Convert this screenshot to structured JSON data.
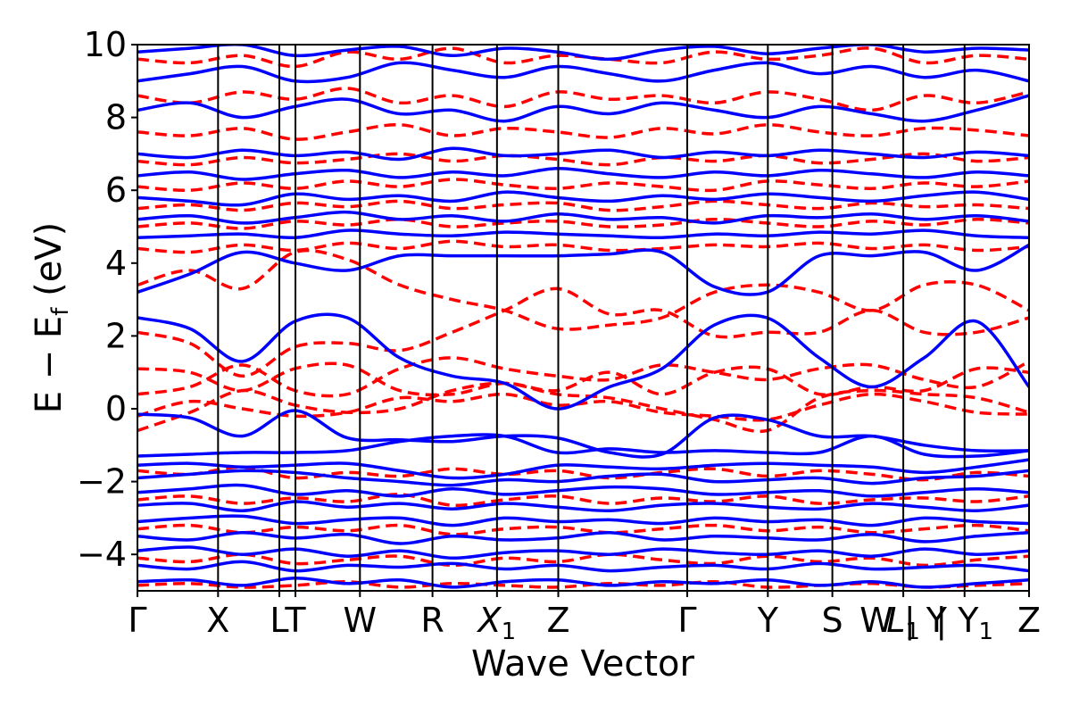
{
  "chart_data": {
    "type": "line",
    "xlabel": "Wave Vector",
    "ylabel": {
      "main": "E − E",
      "sub": "f",
      "unit": " (eV)"
    },
    "ylim": [
      -5,
      10
    ],
    "yticks": [
      {
        "value": 10,
        "label": "10"
      },
      {
        "value": 8,
        "label": "8"
      },
      {
        "value": 6,
        "label": "6"
      },
      {
        "value": 4,
        "label": "4"
      },
      {
        "value": 2,
        "label": "2"
      },
      {
        "value": 0,
        "label": "0"
      },
      {
        "value": -2,
        "label": "−2"
      },
      {
        "value": -4,
        "label": "−4"
      }
    ],
    "kpoints": [
      {
        "label": "Γ",
        "sub": "",
        "position": 0.0
      },
      {
        "label": "X",
        "sub": "",
        "position": 0.5
      },
      {
        "label": "L",
        "sub": "",
        "position": 0.88
      },
      {
        "label": "T",
        "sub": "",
        "position": 0.98
      },
      {
        "label": "W",
        "sub": "",
        "position": 1.38
      },
      {
        "label": "R",
        "sub": "",
        "position": 1.83
      },
      {
        "label": "X",
        "sub": "1",
        "position": 2.23
      },
      {
        "label": "Z",
        "sub": "",
        "position": 2.61
      },
      {
        "label": "Γ",
        "sub": "",
        "position": 3.41
      },
      {
        "label": "Y",
        "sub": "",
        "position": 3.91
      },
      {
        "label": "S",
        "sub": "",
        "position": 4.31
      },
      {
        "label": "W | Y",
        "sub": "",
        "position": 4.75
      },
      {
        "label": "L",
        "sub": "1",
        "position": 4.75
      },
      {
        "label": "| Y",
        "sub": "1",
        "position": 5.13
      },
      {
        "label": "Z",
        "sub": "",
        "position": 5.53
      }
    ],
    "series_styles": [
      {
        "id": "solid",
        "color": "#0000ff",
        "dash": "solid"
      },
      {
        "id": "dashed",
        "color": "#ff0000",
        "dash": "dashed"
      }
    ],
    "bands": {
      "solid": [
        [
          -0.15,
          -0.25,
          -0.75,
          -0.05,
          -0.8,
          -0.85,
          -0.9,
          -0.75,
          -0.8,
          -1.2,
          -1.25,
          -0.25,
          -0.3,
          -0.75,
          -0.75,
          -1.0,
          -1.15,
          -1.15
        ],
        [
          2.5,
          2.2,
          1.3,
          2.4,
          2.5,
          1.4,
          0.9,
          0.7,
          0.0,
          0.6,
          1.1,
          2.3,
          2.5,
          1.4,
          0.6,
          1.4,
          2.4,
          0.6
        ],
        [
          3.2,
          3.7,
          4.3,
          4.0,
          3.8,
          4.2,
          4.2,
          4.2,
          4.2,
          4.25,
          4.3,
          3.35,
          3.2,
          4.2,
          4.2,
          4.3,
          3.8,
          4.5
        ],
        [
          -1.3,
          -1.25,
          -1.2,
          -1.2,
          -1.15,
          -0.9,
          -0.75,
          -0.75,
          -1.2,
          -1.1,
          -1.2,
          -1.15,
          -1.2,
          -1.2,
          -0.75,
          -1.25,
          -1.3,
          -1.15
        ],
        [
          -1.55,
          -1.5,
          -1.6,
          -1.55,
          -1.5,
          -1.7,
          -1.9,
          -1.8,
          -1.55,
          -1.6,
          -1.65,
          -1.55,
          -1.5,
          -1.55,
          -1.6,
          -1.75,
          -1.6,
          -1.4
        ],
        [
          -1.9,
          -1.8,
          -1.7,
          -1.75,
          -1.9,
          -2.0,
          -2.1,
          -1.95,
          -2.0,
          -1.85,
          -1.8,
          -2.0,
          -1.95,
          -1.9,
          -2.05,
          -1.9,
          -1.85,
          -1.7
        ],
        [
          -2.3,
          -2.2,
          -2.1,
          -2.35,
          -2.25,
          -2.4,
          -2.2,
          -2.35,
          -2.25,
          -2.15,
          -2.2,
          -2.35,
          -2.3,
          -2.25,
          -2.4,
          -2.3,
          -2.2,
          -2.3
        ],
        [
          -2.65,
          -2.6,
          -2.8,
          -2.55,
          -2.7,
          -2.6,
          -2.75,
          -2.6,
          -2.7,
          -2.8,
          -2.65,
          -2.6,
          -2.7,
          -2.75,
          -2.6,
          -2.7,
          -2.8,
          -2.65
        ],
        [
          -3.1,
          -3.0,
          -2.95,
          -3.15,
          -3.05,
          -3.0,
          -3.2,
          -3.0,
          -3.1,
          -3.05,
          -3.15,
          -3.0,
          -3.1,
          -3.05,
          -3.2,
          -3.0,
          -3.1,
          -3.15
        ],
        [
          -3.5,
          -3.6,
          -3.4,
          -3.55,
          -3.45,
          -3.7,
          -3.5,
          -3.6,
          -3.55,
          -3.4,
          -3.6,
          -3.5,
          -3.55,
          -3.6,
          -3.45,
          -3.65,
          -3.5,
          -3.4
        ],
        [
          -3.9,
          -3.8,
          -4.0,
          -3.85,
          -4.05,
          -3.9,
          -4.1,
          -3.95,
          -3.9,
          -4.0,
          -3.85,
          -3.95,
          -4.0,
          -3.9,
          -4.05,
          -3.85,
          -4.0,
          -3.9
        ],
        [
          -4.3,
          -4.4,
          -4.2,
          -4.45,
          -4.3,
          -4.35,
          -4.25,
          -4.4,
          -4.3,
          -4.45,
          -4.35,
          -4.3,
          -4.4,
          -4.25,
          -4.4,
          -4.35,
          -4.3,
          -4.45
        ],
        [
          -4.75,
          -4.7,
          -4.85,
          -4.65,
          -4.8,
          -4.7,
          -4.9,
          -4.75,
          -4.7,
          -4.85,
          -4.75,
          -4.8,
          -4.7,
          -4.85,
          -4.75,
          -4.9,
          -4.8,
          -4.7
        ],
        [
          4.7,
          4.75,
          4.8,
          4.7,
          4.9,
          4.8,
          4.75,
          4.85,
          4.8,
          4.75,
          4.7,
          4.8,
          4.75,
          4.85,
          4.8,
          4.9,
          4.75,
          4.7
        ],
        [
          5.2,
          5.3,
          5.1,
          5.25,
          5.4,
          5.2,
          5.3,
          5.15,
          5.35,
          5.2,
          5.25,
          5.1,
          5.3,
          5.25,
          5.35,
          5.2,
          5.3,
          5.15
        ],
        [
          5.8,
          5.7,
          5.6,
          5.9,
          5.75,
          5.85,
          5.7,
          5.95,
          5.8,
          5.7,
          5.85,
          5.75,
          5.9,
          5.8,
          5.7,
          5.85,
          5.95,
          5.75
        ],
        [
          6.4,
          6.5,
          6.3,
          6.45,
          6.55,
          6.35,
          6.5,
          6.4,
          6.6,
          6.45,
          6.35,
          6.5,
          6.4,
          6.55,
          6.45,
          6.35,
          6.5,
          6.4
        ],
        [
          7.0,
          6.9,
          7.1,
          6.95,
          7.05,
          6.85,
          7.15,
          6.95,
          7.0,
          7.1,
          6.9,
          7.05,
          6.95,
          7.1,
          7.0,
          6.9,
          7.05,
          6.95
        ],
        [
          8.2,
          8.4,
          8.0,
          8.3,
          8.5,
          8.1,
          8.2,
          7.9,
          8.3,
          8.1,
          8.4,
          8.2,
          8.0,
          8.3,
          8.1,
          7.9,
          8.2,
          8.6
        ],
        [
          9.0,
          9.2,
          9.4,
          9.0,
          9.1,
          9.5,
          9.3,
          9.1,
          9.4,
          9.2,
          9.0,
          9.3,
          9.5,
          9.2,
          9.4,
          9.1,
          9.3,
          9.0
        ],
        [
          9.8,
          9.9,
          10.0,
          9.7,
          9.85,
          9.95,
          9.7,
          9.9,
          9.8,
          9.6,
          9.85,
          9.95,
          9.75,
          9.9,
          10.0,
          9.8,
          9.9,
          9.85
        ]
      ],
      "dashed": [
        [
          -0.6,
          -0.1,
          0.5,
          0.1,
          -0.1,
          0.0,
          0.5,
          0.7,
          0.4,
          0.3,
          0.0,
          -0.3,
          -0.6,
          0.3,
          0.5,
          0.4,
          0.3,
          -0.1
        ],
        [
          1.1,
          1.0,
          0.5,
          1.1,
          1.2,
          0.5,
          0.4,
          0.7,
          0.5,
          1.0,
          0.4,
          1.0,
          1.1,
          0.4,
          0.6,
          0.5,
          1.1,
          1.0
        ],
        [
          2.1,
          1.8,
          0.9,
          1.7,
          1.8,
          1.6,
          2.1,
          2.7,
          3.3,
          2.6,
          2.7,
          2.0,
          2.1,
          2.1,
          2.7,
          2.1,
          2.1,
          2.5
        ],
        [
          3.4,
          3.8,
          3.3,
          4.3,
          4.1,
          3.4,
          3.0,
          2.7,
          2.2,
          2.3,
          2.5,
          3.2,
          3.4,
          3.2,
          2.7,
          3.4,
          3.4,
          2.7
        ],
        [
          0.4,
          0.6,
          1.2,
          0.5,
          0.4,
          1.1,
          1.4,
          1.1,
          0.9,
          0.8,
          1.2,
          1.0,
          0.8,
          1.1,
          1.2,
          0.8,
          0.6,
          1.3
        ],
        [
          -0.2,
          0.2,
          0.0,
          -0.2,
          -0.1,
          0.3,
          0.2,
          0.4,
          0.1,
          0.2,
          -0.1,
          -0.2,
          -0.3,
          0.1,
          0.4,
          0.2,
          -0.1,
          -0.15
        ],
        [
          4.4,
          4.3,
          4.5,
          4.35,
          4.55,
          4.4,
          4.6,
          4.45,
          4.5,
          4.35,
          4.4,
          4.5,
          4.45,
          4.55,
          4.4,
          4.5,
          4.35,
          4.45
        ],
        [
          5.0,
          5.1,
          4.95,
          5.15,
          5.05,
          5.2,
          5.0,
          5.1,
          5.15,
          5.0,
          5.05,
          5.2,
          5.1,
          5.0,
          5.15,
          5.05,
          5.2,
          5.1
        ],
        [
          5.5,
          5.6,
          5.45,
          5.65,
          5.55,
          5.7,
          5.5,
          5.6,
          5.65,
          5.45,
          5.55,
          5.7,
          5.6,
          5.5,
          5.65,
          5.55,
          5.6,
          5.5
        ],
        [
          6.1,
          6.0,
          6.2,
          6.05,
          6.25,
          6.1,
          6.3,
          6.15,
          6.05,
          6.2,
          6.1,
          6.0,
          6.25,
          6.15,
          6.05,
          6.2,
          6.1,
          6.25
        ],
        [
          6.8,
          6.7,
          6.9,
          6.75,
          6.85,
          7.0,
          6.8,
          6.95,
          6.85,
          6.7,
          6.9,
          6.8,
          6.95,
          6.75,
          6.85,
          7.0,
          6.8,
          6.9
        ],
        [
          7.6,
          7.5,
          7.7,
          7.4,
          7.6,
          7.8,
          7.5,
          7.7,
          7.6,
          7.45,
          7.7,
          7.55,
          7.8,
          7.6,
          7.5,
          7.7,
          7.65,
          7.5
        ],
        [
          8.6,
          8.4,
          8.7,
          8.5,
          8.8,
          8.4,
          8.6,
          8.3,
          8.7,
          8.5,
          8.6,
          8.4,
          8.7,
          8.5,
          8.2,
          8.6,
          8.4,
          8.7
        ],
        [
          9.6,
          9.5,
          9.7,
          9.4,
          9.8,
          9.6,
          9.9,
          9.5,
          9.7,
          9.6,
          9.5,
          9.8,
          9.6,
          9.7,
          9.9,
          9.5,
          9.7,
          9.6
        ],
        [
          -1.7,
          -1.8,
          -1.6,
          -1.9,
          -1.75,
          -1.85,
          -1.65,
          -1.8,
          -1.7,
          -1.9,
          -1.75,
          -1.65,
          -1.85,
          -1.7,
          -1.8,
          -1.95,
          -1.75,
          -1.85
        ],
        [
          -2.5,
          -2.4,
          -2.6,
          -2.45,
          -2.55,
          -2.35,
          -2.65,
          -2.5,
          -2.4,
          -2.6,
          -2.45,
          -2.55,
          -2.4,
          -2.6,
          -2.5,
          -2.45,
          -2.55,
          -2.4
        ],
        [
          -3.3,
          -3.2,
          -3.4,
          -3.25,
          -3.35,
          -3.2,
          -3.45,
          -3.3,
          -3.25,
          -3.4,
          -3.3,
          -3.2,
          -3.35,
          -3.25,
          -3.4,
          -3.3,
          -3.2,
          -3.35
        ],
        [
          -4.1,
          -4.2,
          -4.0,
          -4.25,
          -4.15,
          -4.05,
          -4.3,
          -4.1,
          -4.2,
          -4.0,
          -4.15,
          -4.25,
          -4.05,
          -4.2,
          -4.1,
          -4.3,
          -4.15,
          -4.05
        ],
        [
          -4.85,
          -4.8,
          -4.9,
          -4.85,
          -4.75,
          -4.9,
          -4.8,
          -4.85,
          -4.9,
          -4.8,
          -4.85,
          -4.75,
          -4.9,
          -4.85,
          -4.8,
          -4.9,
          -4.85,
          -4.8
        ]
      ]
    }
  }
}
